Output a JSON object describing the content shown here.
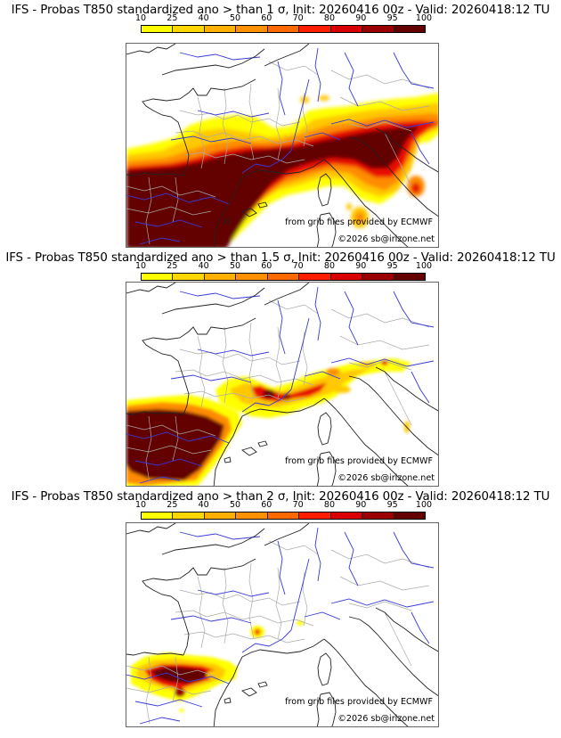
{
  "colorbar": {
    "ticks": [
      "10",
      "25",
      "40",
      "50",
      "60",
      "70",
      "80",
      "90",
      "95",
      "100"
    ],
    "colors": [
      "#ffff00",
      "#ffd700",
      "#ffb000",
      "#ff9000",
      "#ff6a00",
      "#ff1e00",
      "#d80000",
      "#9a0000",
      "#640000"
    ]
  },
  "panels": [
    {
      "title": "IFS - Probas T850  standardized ano > than 1 σ, Init: 20260416 00z - Valid: 20260418:12 TU",
      "source_credit": "from grib files provided by ECMWF",
      "copyright": "©2026 sb@irizone.net"
    },
    {
      "title": "IFS - Probas T850  standardized ano > than 1.5 σ, Init: 20260416 00z - Valid: 20260418:12 TU",
      "source_credit": "from grib files provided by ECMWF",
      "copyright": "©2026 sb@irizone.net"
    },
    {
      "title": "IFS - Probas T850  standardized ano > than 2 σ, Init: 20260416 00z - Valid: 20260418:12 TU",
      "source_credit": "from grib files provided by ECMWF",
      "copyright": "©2026 sb@irizone.net"
    }
  ],
  "map_style": {
    "coast_color": "#222222",
    "border_color": "#aaaaaa",
    "river_color": "#3a3ad8"
  }
}
